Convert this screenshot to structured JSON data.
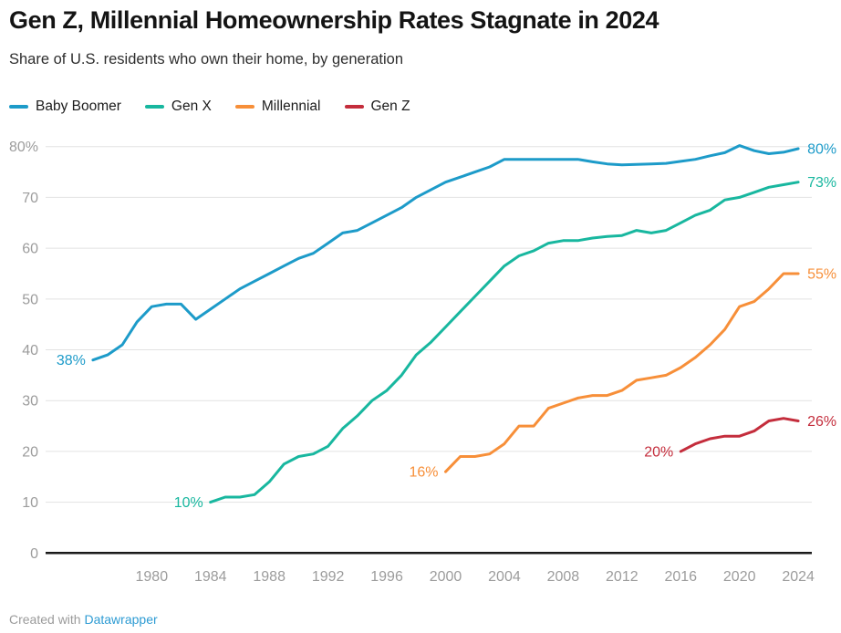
{
  "header": {
    "title": "Gen Z, Millennial Homeownership Rates Stagnate in 2024",
    "subtitle": "Share of U.S. residents who own their home, by generation"
  },
  "chart_data": {
    "type": "line",
    "title": "Gen Z, Millennial Homeownership Rates Stagnate in 2024",
    "subtitle": "Share of U.S. residents who own their home, by generation",
    "xlabel": "",
    "ylabel": "",
    "grid": true,
    "legend_position": "top-left",
    "xlim": [
      1975.5,
      2024
    ],
    "ylim": [
      0,
      84
    ],
    "x_ticks": [
      1980,
      1984,
      1988,
      1992,
      1996,
      2000,
      2004,
      2008,
      2012,
      2016,
      2020,
      2024
    ],
    "y_ticks": [
      {
        "label": "80%",
        "value": 80
      },
      {
        "label": "70",
        "value": 70
      },
      {
        "label": "60",
        "value": 60
      },
      {
        "label": "50",
        "value": 50
      },
      {
        "label": "40",
        "value": 40
      },
      {
        "label": "30",
        "value": 30
      },
      {
        "label": "20",
        "value": 20
      },
      {
        "label": "10",
        "value": 10
      },
      {
        "label": "0",
        "value": 0
      }
    ],
    "series": [
      {
        "name": "Baby Boomer",
        "color": "#1d9bc9",
        "start_label": "38%",
        "end_label": "80%",
        "points": [
          [
            1976,
            38
          ],
          [
            1977,
            39
          ],
          [
            1978,
            41
          ],
          [
            1979,
            45.5
          ],
          [
            1980,
            48.5
          ],
          [
            1981,
            49
          ],
          [
            1982,
            49
          ],
          [
            1983,
            46
          ],
          [
            1984,
            48
          ],
          [
            1985,
            50
          ],
          [
            1986,
            52
          ],
          [
            1987,
            53.5
          ],
          [
            1988,
            55
          ],
          [
            1989,
            56.5
          ],
          [
            1990,
            58
          ],
          [
            1991,
            59
          ],
          [
            1992,
            61
          ],
          [
            1993,
            63
          ],
          [
            1994,
            63.5
          ],
          [
            1995,
            65
          ],
          [
            1996,
            66.5
          ],
          [
            1997,
            68
          ],
          [
            1998,
            70
          ],
          [
            1999,
            71.5
          ],
          [
            2000,
            73
          ],
          [
            2001,
            74
          ],
          [
            2002,
            75
          ],
          [
            2003,
            76
          ],
          [
            2004,
            77.5
          ],
          [
            2005,
            77.5
          ],
          [
            2006,
            77.5
          ],
          [
            2007,
            77.5
          ],
          [
            2008,
            77.5
          ],
          [
            2009,
            77.5
          ],
          [
            2010,
            77
          ],
          [
            2011,
            76.6
          ],
          [
            2012,
            76.4
          ],
          [
            2013,
            76.5
          ],
          [
            2014,
            76.6
          ],
          [
            2015,
            76.7
          ],
          [
            2016,
            77.1
          ],
          [
            2017,
            77.5
          ],
          [
            2018,
            78.2
          ],
          [
            2019,
            78.8
          ],
          [
            2020,
            80.2
          ],
          [
            2021,
            79.2
          ],
          [
            2022,
            78.6
          ],
          [
            2023,
            78.9
          ],
          [
            2024,
            79.6
          ]
        ]
      },
      {
        "name": "Gen X",
        "color": "#18b79f",
        "start_label": "10%",
        "end_label": "73%",
        "points": [
          [
            1984,
            10
          ],
          [
            1985,
            11
          ],
          [
            1986,
            11
          ],
          [
            1987,
            11.5
          ],
          [
            1988,
            14
          ],
          [
            1989,
            17.5
          ],
          [
            1990,
            19
          ],
          [
            1991,
            19.5
          ],
          [
            1992,
            21
          ],
          [
            1993,
            24.5
          ],
          [
            1994,
            27
          ],
          [
            1995,
            30
          ],
          [
            1996,
            32
          ],
          [
            1997,
            35
          ],
          [
            1998,
            39
          ],
          [
            1999,
            41.5
          ],
          [
            2000,
            44.5
          ],
          [
            2001,
            47.5
          ],
          [
            2002,
            50.5
          ],
          [
            2003,
            53.5
          ],
          [
            2004,
            56.5
          ],
          [
            2005,
            58.5
          ],
          [
            2006,
            59.5
          ],
          [
            2007,
            61
          ],
          [
            2008,
            61.5
          ],
          [
            2009,
            61.5
          ],
          [
            2010,
            62
          ],
          [
            2011,
            62.3
          ],
          [
            2012,
            62.5
          ],
          [
            2013,
            63.5
          ],
          [
            2014,
            63
          ],
          [
            2015,
            63.5
          ],
          [
            2016,
            65
          ],
          [
            2017,
            66.5
          ],
          [
            2018,
            67.5
          ],
          [
            2019,
            69.5
          ],
          [
            2020,
            70
          ],
          [
            2021,
            71
          ],
          [
            2022,
            72
          ],
          [
            2023,
            72.5
          ],
          [
            2024,
            73
          ]
        ]
      },
      {
        "name": "Millennial",
        "color": "#f78f39",
        "start_label": "16%",
        "end_label": "55%",
        "points": [
          [
            2000,
            16
          ],
          [
            2001,
            19
          ],
          [
            2002,
            19
          ],
          [
            2003,
            19.5
          ],
          [
            2004,
            21.5
          ],
          [
            2005,
            25
          ],
          [
            2006,
            25
          ],
          [
            2007,
            28.5
          ],
          [
            2008,
            29.5
          ],
          [
            2009,
            30.5
          ],
          [
            2010,
            31
          ],
          [
            2011,
            31
          ],
          [
            2012,
            32
          ],
          [
            2013,
            34
          ],
          [
            2014,
            34.5
          ],
          [
            2015,
            35
          ],
          [
            2016,
            36.5
          ],
          [
            2017,
            38.5
          ],
          [
            2018,
            41
          ],
          [
            2019,
            44
          ],
          [
            2020,
            48.5
          ],
          [
            2021,
            49.5
          ],
          [
            2022,
            52
          ],
          [
            2023,
            55
          ],
          [
            2024,
            55
          ]
        ]
      },
      {
        "name": "Gen Z",
        "color": "#c42d3c",
        "start_label": "20%",
        "end_label": "26%",
        "points": [
          [
            2016,
            20
          ],
          [
            2017,
            21.5
          ],
          [
            2018,
            22.5
          ],
          [
            2019,
            23
          ],
          [
            2020,
            23
          ],
          [
            2021,
            24
          ],
          [
            2022,
            26
          ],
          [
            2023,
            26.5
          ],
          [
            2024,
            26
          ]
        ]
      }
    ]
  },
  "footer": {
    "prefix": "Created with ",
    "link_label": "Datawrapper"
  }
}
